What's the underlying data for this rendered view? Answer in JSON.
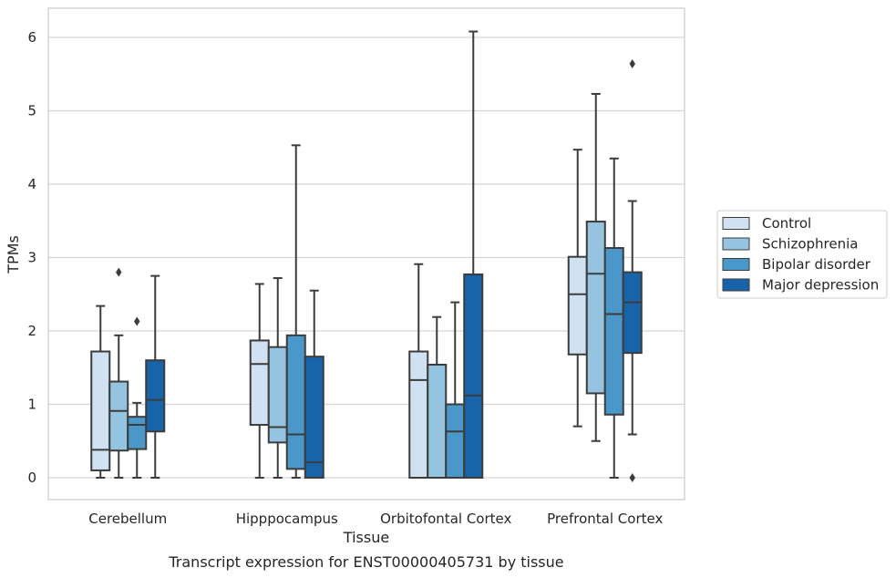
{
  "chart_data": {
    "type": "box",
    "xlabel": "Tissue",
    "ylabel": "TPMs",
    "caption": "Transcript expression for ENST00000405731 by tissue",
    "ylim": [
      -0.3,
      6.4
    ],
    "yticks": [
      0,
      1,
      2,
      3,
      4,
      5,
      6
    ],
    "grid": "horizontal",
    "legend_position": "right",
    "categories": [
      "Cerebellum",
      "Hipppocampus",
      "Orbitofontal Cortex",
      "Prefrontal Cortex"
    ],
    "series": [
      {
        "name": "Control",
        "color": "#d0e1f2",
        "boxes": [
          {
            "whislo": 0.0,
            "q1": 0.1,
            "med": 0.38,
            "q3": 1.72,
            "whishi": 2.34,
            "fliers": []
          },
          {
            "whislo": 0.0,
            "q1": 0.72,
            "med": 1.55,
            "q3": 1.87,
            "whishi": 2.64,
            "fliers": []
          },
          {
            "whislo": 0.0,
            "q1": 0.0,
            "med": 1.33,
            "q3": 1.72,
            "whishi": 2.91,
            "fliers": []
          },
          {
            "whislo": 0.7,
            "q1": 1.68,
            "med": 2.5,
            "q3": 3.01,
            "whishi": 4.47,
            "fliers": []
          }
        ]
      },
      {
        "name": "Schizophrenia",
        "color": "#94c4df",
        "boxes": [
          {
            "whislo": 0.0,
            "q1": 0.37,
            "med": 0.91,
            "q3": 1.31,
            "whishi": 1.94,
            "fliers": [
              2.8
            ]
          },
          {
            "whislo": 0.0,
            "q1": 0.48,
            "med": 0.69,
            "q3": 1.78,
            "whishi": 2.72,
            "fliers": []
          },
          {
            "whislo": 0.0,
            "q1": 0.0,
            "med": 0.0,
            "q3": 1.54,
            "whishi": 2.19,
            "fliers": []
          },
          {
            "whislo": 0.5,
            "q1": 1.15,
            "med": 2.78,
            "q3": 3.49,
            "whishi": 5.23,
            "fliers": []
          }
        ]
      },
      {
        "name": "Bipolar disorder",
        "color": "#4a98c9",
        "boxes": [
          {
            "whislo": 0.0,
            "q1": 0.39,
            "med": 0.72,
            "q3": 0.83,
            "whishi": 1.02,
            "fliers": [
              2.13
            ]
          },
          {
            "whislo": 0.0,
            "q1": 0.12,
            "med": 0.59,
            "q3": 1.94,
            "whishi": 4.53,
            "fliers": []
          },
          {
            "whislo": 0.0,
            "q1": 0.0,
            "med": 0.63,
            "q3": 1.0,
            "whishi": 2.39,
            "fliers": []
          },
          {
            "whislo": 0.0,
            "q1": 0.86,
            "med": 2.23,
            "q3": 3.13,
            "whishi": 4.35,
            "fliers": []
          }
        ]
      },
      {
        "name": "Major depression",
        "color": "#1764ab",
        "boxes": [
          {
            "whislo": 0.0,
            "q1": 0.63,
            "med": 1.06,
            "q3": 1.6,
            "whishi": 2.75,
            "fliers": []
          },
          {
            "whislo": 0.0,
            "q1": 0.0,
            "med": 0.21,
            "q3": 1.65,
            "whishi": 2.55,
            "fliers": []
          },
          {
            "whislo": 0.0,
            "q1": 0.0,
            "med": 1.12,
            "q3": 2.77,
            "whishi": 6.08,
            "fliers": []
          },
          {
            "whislo": 0.59,
            "q1": 1.7,
            "med": 2.39,
            "q3": 2.8,
            "whishi": 3.77,
            "fliers": [
              5.64,
              0.0
            ]
          }
        ]
      }
    ]
  }
}
